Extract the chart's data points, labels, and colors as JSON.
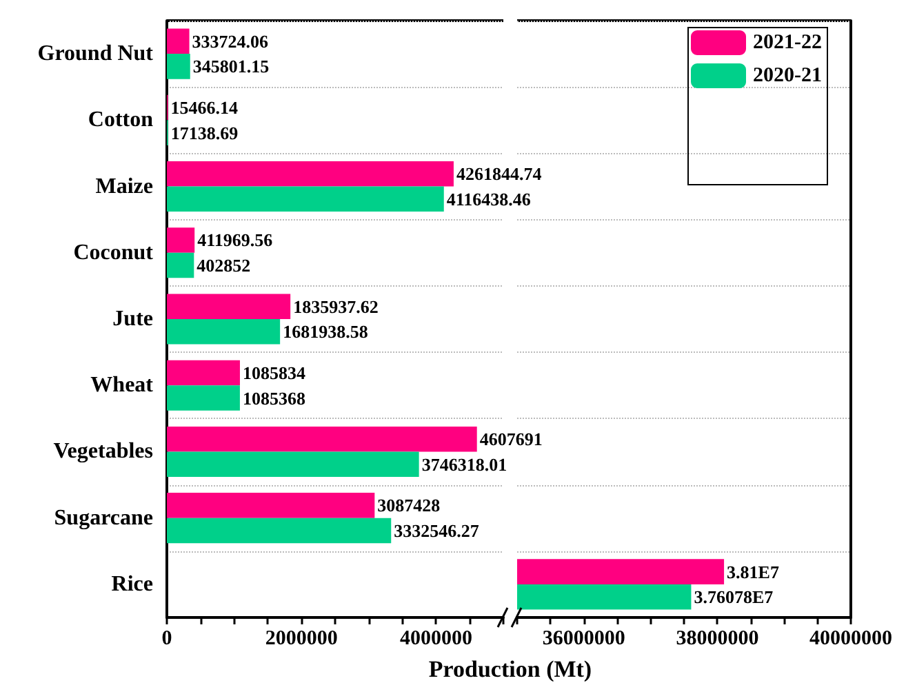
{
  "chart_data": [
    {
      "type": "bar",
      "orientation": "horizontal",
      "xlabel": "Production (Mt)",
      "categories": [
        "Ground Nut",
        "Cotton",
        "Maize",
        "Coconut",
        "Jute",
        "Wheat",
        "Vegetables",
        "Sugarcane",
        "Rice"
      ],
      "series": [
        {
          "color": "#ff0080",
          "values": [
            333724.06,
            15466.14,
            4261844.74,
            411969.56,
            1835937.62,
            1085834,
            4607691,
            3087428,
            null
          ],
          "value_labels": [
            "333724.06",
            "15466.14",
            "4261844.74",
            "411969.56",
            "1835937.62",
            "1085834",
            "4607691",
            "3087428",
            null
          ]
        },
        {
          "color": "#00d08a",
          "values": [
            345801.15,
            17138.69,
            4116438.46,
            402852,
            1681938.58,
            1085368,
            3746318.01,
            3332546.27,
            null
          ],
          "value_labels": [
            "345801.15",
            "17138.69",
            "4116438.46",
            "402852",
            "1681938.58",
            "1085368",
            "3746318.01",
            "3332546.27",
            null
          ]
        }
      ],
      "xlim": [
        0,
        5000000
      ],
      "xticks": [
        0,
        {
          "value": 500000,
          "label": null
        },
        {
          "value": 1000000,
          "label": null
        },
        {
          "value": 1500000,
          "label": null
        },
        2000000,
        {
          "value": 2500000,
          "label": null
        },
        {
          "value": 3000000,
          "label": null
        },
        {
          "value": 3500000,
          "label": null
        },
        4000000,
        {
          "value": 4500000,
          "label": null
        },
        {
          "value": 5000000,
          "label": null
        }
      ],
      "grid": "y",
      "legend": false
    },
    {
      "type": "bar",
      "orientation": "horizontal",
      "categories": [
        null,
        null,
        null,
        null,
        null,
        null,
        null,
        null,
        null
      ],
      "series": [
        {
          "name": "2021-22",
          "color": "#ff0080",
          "values": [
            null,
            null,
            null,
            null,
            null,
            null,
            null,
            null,
            38100000
          ],
          "value_labels": [
            null,
            null,
            null,
            null,
            null,
            null,
            null,
            null,
            "3.81E7"
          ]
        },
        {
          "name": "2020-21",
          "color": "#00d08a",
          "values": [
            null,
            null,
            null,
            null,
            null,
            null,
            null,
            null,
            37607800
          ],
          "value_labels": [
            null,
            null,
            null,
            null,
            null,
            null,
            null,
            null,
            "3.76078E7"
          ]
        }
      ],
      "xlim": [
        35000000,
        40000000
      ],
      "xticks": [
        {
          "value": 35000000,
          "label": null
        },
        {
          "value": 35500000,
          "label": null
        },
        36000000,
        {
          "value": 36500000,
          "label": null
        },
        {
          "value": 37000000,
          "label": null
        },
        {
          "value": 37500000,
          "label": null
        },
        38000000,
        {
          "value": 38500000,
          "label": null
        },
        {
          "value": 39000000,
          "label": null
        },
        {
          "value": 39500000,
          "label": null
        },
        40000000
      ],
      "grid": "y",
      "legend": "top right",
      "tick_labels": "x"
    }
  ]
}
